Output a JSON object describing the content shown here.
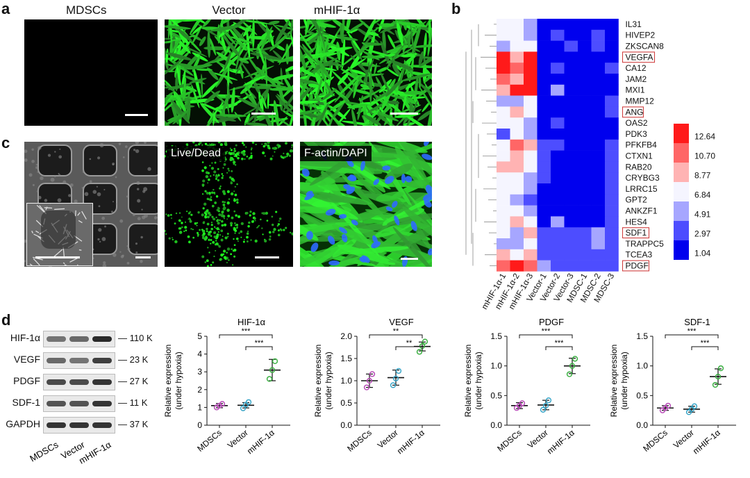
{
  "panel_a": {
    "label": "a",
    "titles": [
      "MDSCs",
      "Vector",
      "mHIF-1α"
    ]
  },
  "panel_b": {
    "label": "b",
    "genes": [
      "IL31",
      "HIVEP2",
      "ZKSCAN8",
      "VEGFA",
      "CA12",
      "JAM2",
      "MXI1",
      "MMP12",
      "ANG",
      "OAS2",
      "PDK3",
      "PFKFB4",
      "CTXN1",
      "RAB20",
      "CRYBG3",
      "LRRC15",
      "GPT2",
      "ANKZF1",
      "HES4",
      "SDF1",
      "TRAPPC5",
      "TCEA3",
      "PDGF"
    ],
    "boxed_genes": [
      "VEGFA",
      "ANG",
      "SDF1",
      "PDGF"
    ],
    "samples": [
      "mHIF-1α-1",
      "mHIF-1α-2",
      "mHIF-1α-3",
      "Vector-1",
      "Vector-2",
      "Vector-3",
      "MDSC-1",
      "MDSC-2",
      "MDSC-3"
    ],
    "legend_values": [
      "12.64",
      "10.70",
      "8.77",
      "6.84",
      "4.91",
      "2.97",
      "1.04"
    ],
    "colors": {
      "high": "#ff1a1a",
      "mid": "#f5f5ff",
      "low": "#0000ee"
    }
  },
  "panel_c": {
    "label": "c",
    "tags": [
      "Live/Dead",
      "F-actin/DAPI"
    ]
  },
  "panel_d": {
    "label": "d",
    "blot_rows": [
      {
        "protein": "HIF-1α",
        "size": "110 K"
      },
      {
        "protein": "VEGF",
        "size": "23 K"
      },
      {
        "protein": "PDGF",
        "size": "27 K"
      },
      {
        "protein": "SDF-1",
        "size": "11 K"
      },
      {
        "protein": "GAPDH",
        "size": "37 K"
      }
    ],
    "blot_lanes": [
      "MDSCs",
      "Vector",
      "mHIF-1α"
    ]
  },
  "chart_data": [
    {
      "type": "scatter",
      "title": "HIF-1α",
      "ylabel": "Relative expression\n(under hypoxia)",
      "categories": [
        "MDSCs",
        "Vector",
        "mHIF-1α"
      ],
      "ylim": [
        0,
        5
      ],
      "yticks": [
        "0",
        "1",
        "2",
        "3",
        "4",
        "5"
      ],
      "means": [
        1.1,
        1.12,
        3.1
      ],
      "sd": [
        0.12,
        0.15,
        0.6
      ],
      "points": [
        [
          1.0,
          1.1,
          1.2
        ],
        [
          0.95,
          1.15,
          1.3
        ],
        [
          2.6,
          3.1,
          3.6
        ]
      ],
      "significance": [
        {
          "from": 0,
          "to": 2,
          "label": "***"
        },
        {
          "from": 1,
          "to": 2,
          "label": "***"
        }
      ]
    },
    {
      "type": "scatter",
      "title": "VEGF",
      "ylabel": "Relative expression\n(under hypoxia)",
      "categories": [
        "MDSCs",
        "Vector",
        "mHIF-1α"
      ],
      "ylim": [
        0,
        2.0
      ],
      "yticks": [
        "0.0",
        "0.5",
        "1.0",
        "1.5",
        "2.0"
      ],
      "means": [
        1.0,
        1.07,
        1.77
      ],
      "sd": [
        0.15,
        0.17,
        0.1
      ],
      "points": [
        [
          0.85,
          1.0,
          1.15
        ],
        [
          0.9,
          1.05,
          1.22
        ],
        [
          1.65,
          1.78,
          1.88
        ]
      ],
      "significance": [
        {
          "from": 0,
          "to": 2,
          "label": "**"
        },
        {
          "from": 1,
          "to": 2,
          "label": "**"
        }
      ]
    },
    {
      "type": "scatter",
      "title": "PDGF",
      "ylabel": "Relative expression\n(under hypoxia)",
      "categories": [
        "MDSCs",
        "Vector",
        "mHIF-1α"
      ],
      "ylim": [
        0,
        1.5
      ],
      "yticks": [
        "0.0",
        "0.5",
        "1.0",
        "1.5"
      ],
      "means": [
        0.33,
        0.34,
        1.0
      ],
      "sd": [
        0.05,
        0.08,
        0.13
      ],
      "points": [
        [
          0.29,
          0.33,
          0.37
        ],
        [
          0.26,
          0.33,
          0.42
        ],
        [
          0.86,
          1.0,
          1.12
        ]
      ],
      "significance": [
        {
          "from": 0,
          "to": 2,
          "label": "***"
        },
        {
          "from": 1,
          "to": 2,
          "label": "***"
        }
      ]
    },
    {
      "type": "scatter",
      "title": "SDF-1",
      "ylabel": "Relative expression\n(under hypoxia)",
      "categories": [
        "MDSCs",
        "Vector",
        "mHIF-1α"
      ],
      "ylim": [
        0,
        1.5
      ],
      "yticks": [
        "0.0",
        "0.5",
        "1.0",
        "1.5"
      ],
      "means": [
        0.29,
        0.27,
        0.82
      ],
      "sd": [
        0.04,
        0.05,
        0.13
      ],
      "points": [
        [
          0.25,
          0.29,
          0.33
        ],
        [
          0.22,
          0.27,
          0.32
        ],
        [
          0.68,
          0.82,
          0.96
        ]
      ],
      "significance": [
        {
          "from": 0,
          "to": 2,
          "label": "***"
        },
        {
          "from": 1,
          "to": 2,
          "label": "***"
        }
      ]
    }
  ]
}
